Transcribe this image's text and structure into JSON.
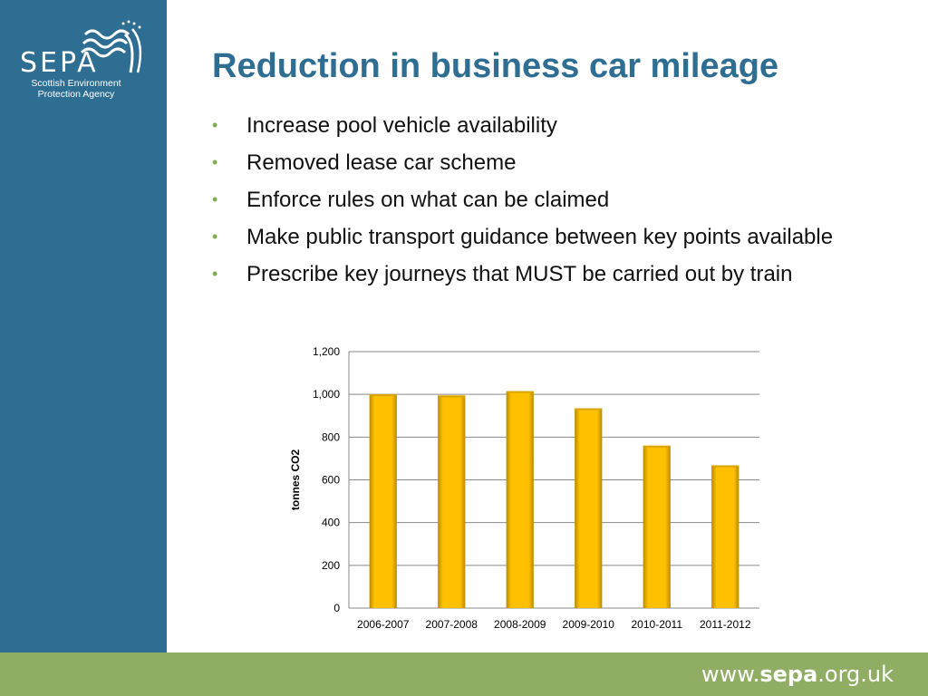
{
  "logo": {
    "wordmark": "SEPA",
    "subtitle_line1": "Scottish Environment",
    "subtitle_line2": "Protection Agency"
  },
  "title": "Reduction in business car mileage",
  "bullets": [
    "Increase pool vehicle availability",
    "Removed lease car scheme",
    "Enforce rules on what can be claimed",
    "Make public transport guidance between key points available",
    "Prescribe key journeys that MUST be carried out by train"
  ],
  "footer": {
    "url_prefix": "www.",
    "url_brand": "sepa",
    "url_suffix": ".org.uk"
  },
  "colors": {
    "sidebar": "#2f6e93",
    "footer": "#8fae63",
    "bar": "#ffc000",
    "title": "#2f6e93"
  },
  "chart_data": {
    "type": "bar",
    "title": "",
    "xlabel": "",
    "ylabel": "tonnes CO2",
    "categories": [
      "2006-2007",
      "2007-2008",
      "2008-2009",
      "2009-2010",
      "2010-2011",
      "2011-2012"
    ],
    "values": [
      1000,
      995,
      1015,
      935,
      760,
      668
    ],
    "ylim": [
      0,
      1200
    ],
    "yticks": [
      0,
      200,
      400,
      600,
      800,
      1000,
      1200
    ],
    "ytick_labels": [
      "0",
      "200",
      "400",
      "600",
      "800",
      "1,000",
      "1,200"
    ],
    "grid": true,
    "legend": "none"
  }
}
